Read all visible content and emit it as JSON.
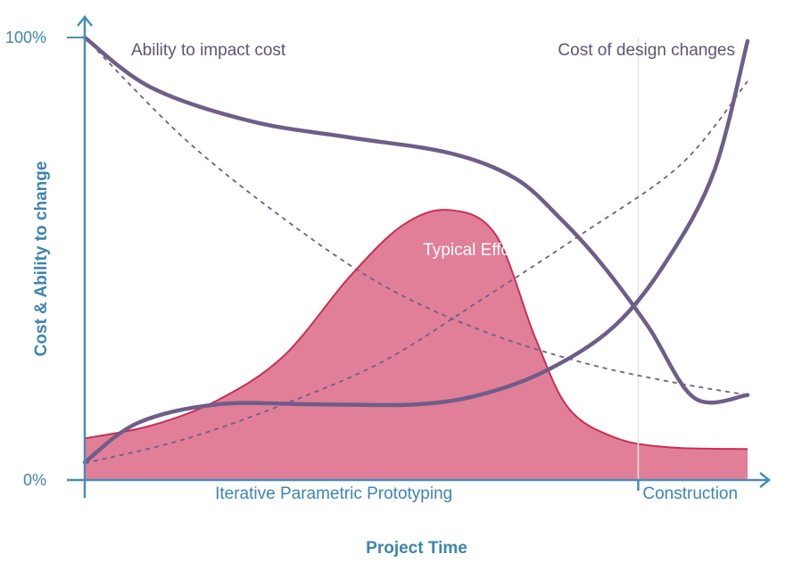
{
  "chart_data": {
    "type": "line",
    "title": "",
    "xlabel": "Project Time",
    "ylabel": "Cost & Ability to change",
    "xlim": [
      0,
      1
    ],
    "ylim": [
      0,
      100
    ],
    "yticks": [
      {
        "value": 0,
        "label": "0%"
      },
      {
        "value": 100,
        "label": "100%"
      }
    ],
    "phases": [
      {
        "label": "Iterative Parametric Prototyping",
        "start": 0,
        "end": 0.835
      },
      {
        "label": "Construction",
        "start": 0.835,
        "end": 1
      }
    ],
    "curve_labels": {
      "ability": "Ability to impact cost",
      "cost": "Cost of design changes",
      "effort": "Typical Effort"
    },
    "series": [
      {
        "key": "ability",
        "style": "solid",
        "points": [
          [
            0,
            100
          ],
          [
            0.1,
            88.7
          ],
          [
            0.25,
            81.1
          ],
          [
            0.4,
            77.4
          ],
          [
            0.55,
            73.9
          ],
          [
            0.65,
            68.1
          ],
          [
            0.72,
            58.7
          ],
          [
            0.78,
            48.8
          ],
          [
            0.85,
            34.7
          ],
          [
            0.92,
            18.5
          ],
          [
            1,
            19.2
          ]
        ]
      },
      {
        "key": "cost",
        "style": "solid",
        "points": [
          [
            0,
            4.0
          ],
          [
            0.08,
            12.9
          ],
          [
            0.2,
            17.1
          ],
          [
            0.35,
            17.1
          ],
          [
            0.5,
            17.1
          ],
          [
            0.6,
            19.4
          ],
          [
            0.7,
            25.0
          ],
          [
            0.8,
            34.9
          ],
          [
            0.88,
            50.0
          ],
          [
            0.95,
            70.0
          ],
          [
            1,
            99.2
          ]
        ]
      },
      {
        "key": "ability_typical",
        "style": "dashed",
        "points": [
          [
            0,
            100
          ],
          [
            0.15,
            77.2
          ],
          [
            0.3,
            59.1
          ],
          [
            0.45,
            44.0
          ],
          [
            0.6,
            33.7
          ],
          [
            0.75,
            26.6
          ],
          [
            0.88,
            22.3
          ],
          [
            1,
            19.2
          ]
        ]
      },
      {
        "key": "cost_typical",
        "style": "dashed",
        "points": [
          [
            0,
            3.8
          ],
          [
            0.15,
            9.2
          ],
          [
            0.3,
            17.1
          ],
          [
            0.45,
            26.8
          ],
          [
            0.6,
            40.9
          ],
          [
            0.75,
            55.6
          ],
          [
            0.9,
            71.4
          ],
          [
            1,
            90.1
          ]
        ]
      },
      {
        "key": "effort",
        "style": "filled-area",
        "points": [
          [
            0,
            9.4
          ],
          [
            0.1,
            12.3
          ],
          [
            0.2,
            18.0
          ],
          [
            0.3,
            28.0
          ],
          [
            0.4,
            46.0
          ],
          [
            0.48,
            57.6
          ],
          [
            0.55,
            61.0
          ],
          [
            0.62,
            55.4
          ],
          [
            0.68,
            32.0
          ],
          [
            0.73,
            16.2
          ],
          [
            0.8,
            9.6
          ],
          [
            0.88,
            7.4
          ],
          [
            1,
            7.0
          ]
        ]
      }
    ],
    "colors": {
      "axis": "#4a8db5",
      "axis_text": "#3d85b0",
      "curve": "#6e5e88",
      "curve_text": "#5e5475",
      "effort_fill": "#e17f99",
      "effort_stroke": "#c92f55",
      "effort_text": "#ffffff",
      "divider": "#e4e4e4"
    },
    "grid": false,
    "legend": "none"
  }
}
